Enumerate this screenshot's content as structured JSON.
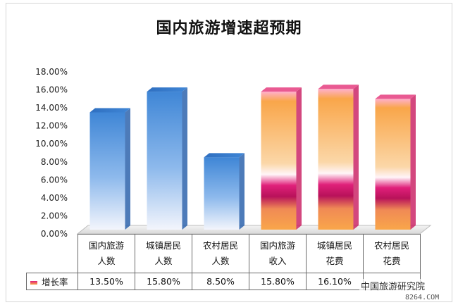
{
  "chart_data": {
    "type": "bar",
    "title": "国内旅游增速超预期",
    "categories": [
      "国内旅游\n人数",
      "城镇居民\n人数",
      "农村居民\n人数",
      "国内旅游\n收入",
      "城镇居民\n花费",
      "农村居民\n花费"
    ],
    "series": [
      {
        "name": "增长率",
        "values": [
          13.5,
          15.8,
          8.5,
          15.8,
          16.1,
          15.0
        ],
        "value_labels": [
          "13.50%",
          "15.80%",
          "8.50%",
          "15.80%",
          "16.10%",
          ""
        ]
      }
    ],
    "y_ticks": [
      "0.00%",
      "2.00%",
      "4.00%",
      "6.00%",
      "8.00%",
      "10.00%",
      "12.00%",
      "14.00%",
      "16.00%",
      "18.00%"
    ],
    "ylim": [
      0,
      18
    ],
    "grid": false,
    "legend_position": "table-left",
    "colors": {
      "blue_top": "#3f86d6",
      "blue_bottom": "#eef2fb",
      "orange": "#f9a64a",
      "magenta": "#c0185e",
      "pink_top": "#ff9fc0"
    }
  },
  "watermark": "中国旅游研究院",
  "site_mark": "8264.COM"
}
